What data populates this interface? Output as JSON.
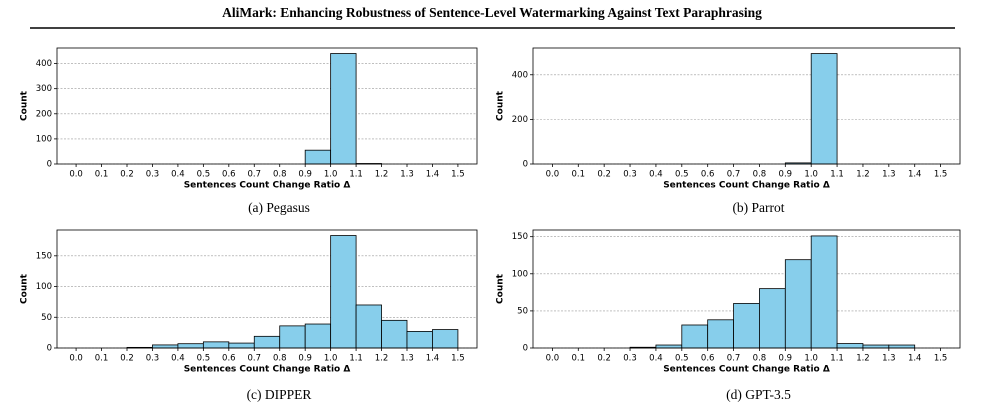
{
  "header": {
    "title": "AliMark: Enhancing Robustness of Sentence-Level Watermarking Against Text Paraphrasing"
  },
  "chart_data": [
    {
      "type": "histogram",
      "caption": "(a) Pegasus",
      "xlabel": "Sentences Count Change Ratio Δ",
      "ylabel": "Count",
      "color": "#87ceeb",
      "grid": true,
      "bins": [
        0,
        0.1,
        0.2,
        0.3,
        0.4,
        0.5,
        0.6,
        0.7,
        0.8,
        0.9,
        1,
        1.1,
        1.2,
        1.3,
        1.4,
        1.5
      ],
      "values": [
        0,
        0,
        0,
        0,
        0,
        0,
        0,
        0,
        0,
        55,
        440,
        2,
        0,
        0,
        0
      ],
      "xlim": [
        -0.075,
        1.575
      ],
      "ylim": [
        0,
        462
      ],
      "yticks": [
        0,
        100,
        200,
        300,
        400
      ],
      "xticks": [
        {
          "value": 0,
          "label": "0.0"
        },
        0.1,
        0.2,
        0.3,
        0.4,
        0.5,
        0.6,
        0.7,
        0.8,
        0.9,
        {
          "value": 1,
          "label": "1.0"
        },
        1.1,
        1.2,
        1.3,
        1.4,
        1.5
      ]
    },
    {
      "type": "histogram",
      "caption": "(b) Parrot",
      "xlabel": "Sentences Count Change Ratio Δ",
      "ylabel": "Count",
      "color": "#87ceeb",
      "grid": true,
      "bins": [
        0,
        0.1,
        0.2,
        0.3,
        0.4,
        0.5,
        0.6,
        0.7,
        0.8,
        0.9,
        1,
        1.1,
        1.2,
        1.3,
        1.4,
        1.5
      ],
      "values": [
        0,
        0,
        0,
        0,
        0,
        0,
        0,
        0,
        0,
        5,
        495,
        0,
        0,
        0,
        0
      ],
      "xlim": [
        -0.075,
        1.575
      ],
      "ylim": [
        0,
        520
      ],
      "yticks": [
        0,
        200,
        400
      ],
      "xticks": [
        {
          "value": 0,
          "label": "0.0"
        },
        0.1,
        0.2,
        0.3,
        0.4,
        0.5,
        0.6,
        0.7,
        0.8,
        0.9,
        {
          "value": 1,
          "label": "1.0"
        },
        1.1,
        1.2,
        1.3,
        1.4,
        1.5
      ]
    },
    {
      "type": "histogram",
      "caption": "(c) DIPPER",
      "xlabel": "Sentences Count Change Ratio Δ",
      "ylabel": "Count",
      "color": "#87ceeb",
      "grid": true,
      "bins": [
        0,
        0.1,
        0.2,
        0.3,
        0.4,
        0.5,
        0.6,
        0.7,
        0.8,
        0.9,
        1,
        1.1,
        1.2,
        1.3,
        1.4,
        1.5
      ],
      "values": [
        0,
        0,
        1,
        5,
        7,
        10,
        8,
        19,
        36,
        39,
        183,
        70,
        45,
        27,
        30
      ],
      "xlim": [
        -0.075,
        1.575
      ],
      "ylim": [
        0,
        192
      ],
      "yticks": [
        0,
        50,
        100,
        150
      ],
      "xticks": [
        {
          "value": 0,
          "label": "0.0"
        },
        0.1,
        0.2,
        0.3,
        0.4,
        0.5,
        0.6,
        0.7,
        0.8,
        0.9,
        {
          "value": 1,
          "label": "1.0"
        },
        1.1,
        1.2,
        1.3,
        1.4,
        1.5
      ]
    },
    {
      "type": "histogram",
      "caption": "(d) GPT-3.5",
      "xlabel": "Sentences Count Change Ratio Δ",
      "ylabel": "Count",
      "color": "#87ceeb",
      "grid": true,
      "bins": [
        0,
        0.1,
        0.2,
        0.3,
        0.4,
        0.5,
        0.6,
        0.7,
        0.8,
        0.9,
        1,
        1.1,
        1.2,
        1.3,
        1.4,
        1.5
      ],
      "values": [
        0,
        0,
        0,
        1,
        4,
        31,
        38,
        60,
        80,
        119,
        151,
        6,
        4,
        4,
        0
      ],
      "xlim": [
        -0.075,
        1.575
      ],
      "ylim": [
        0,
        159
      ],
      "yticks": [
        0,
        50,
        100,
        150
      ],
      "xticks": [
        {
          "value": 0,
          "label": "0.0"
        },
        0.1,
        0.2,
        0.3,
        0.4,
        0.5,
        0.6,
        0.7,
        0.8,
        0.9,
        {
          "value": 1,
          "label": "1.0"
        },
        1.1,
        1.2,
        1.3,
        1.4,
        1.5
      ]
    }
  ]
}
